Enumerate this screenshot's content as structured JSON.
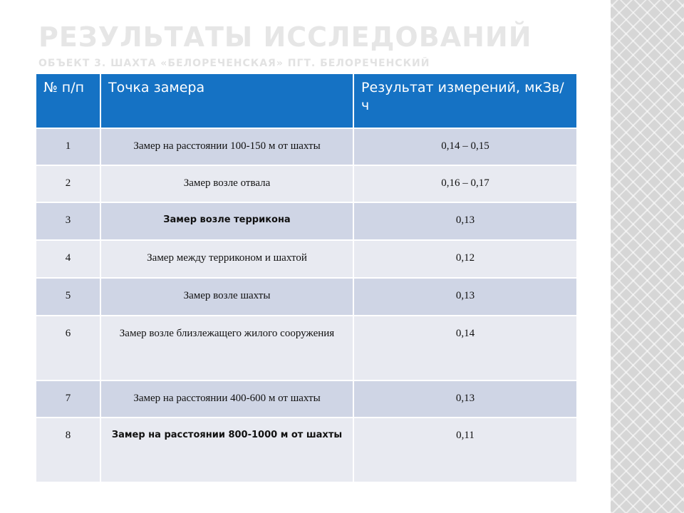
{
  "slide": {
    "title": "Результаты исследований",
    "subtitle": "Объект 3. Шахта «Белореченская» пгт. Белореченский"
  },
  "table": {
    "headers": [
      "№ п/п",
      "Точка замера",
      "Результат измерений, мкЗв/ч"
    ],
    "rows": [
      {
        "num": "1",
        "point": "Замер на расстоянии 100-150 м от шахты",
        "result": "0,14 – 0,15"
      },
      {
        "num": "2",
        "point": "Замер возле отвала",
        "result": "0,16 – 0,17"
      },
      {
        "num": "3",
        "point": "Замер возле террикона",
        "result": "0,13"
      },
      {
        "num": "4",
        "point": "Замер между терриконом и шахтой",
        "result": "0,12"
      },
      {
        "num": "5",
        "point": "Замер возле шахты",
        "result": "0,13"
      },
      {
        "num": "6",
        "point": "Замер возле близлежащего жилого сооружения",
        "result": "0,14"
      },
      {
        "num": "7",
        "point": "Замер на расстоянии 400-600 м от шахты",
        "result": "0,13"
      },
      {
        "num": "8",
        "point": "Замер на расстоянии 800-1000 м от шахты",
        "result": "0,11"
      }
    ]
  },
  "colors": {
    "header_bg": "#1572c4",
    "row_dark": "#cfd5e5",
    "row_light": "#e8eaf1",
    "title_text": "#e6e6e6",
    "side_pattern": "#d6d6d6"
  }
}
